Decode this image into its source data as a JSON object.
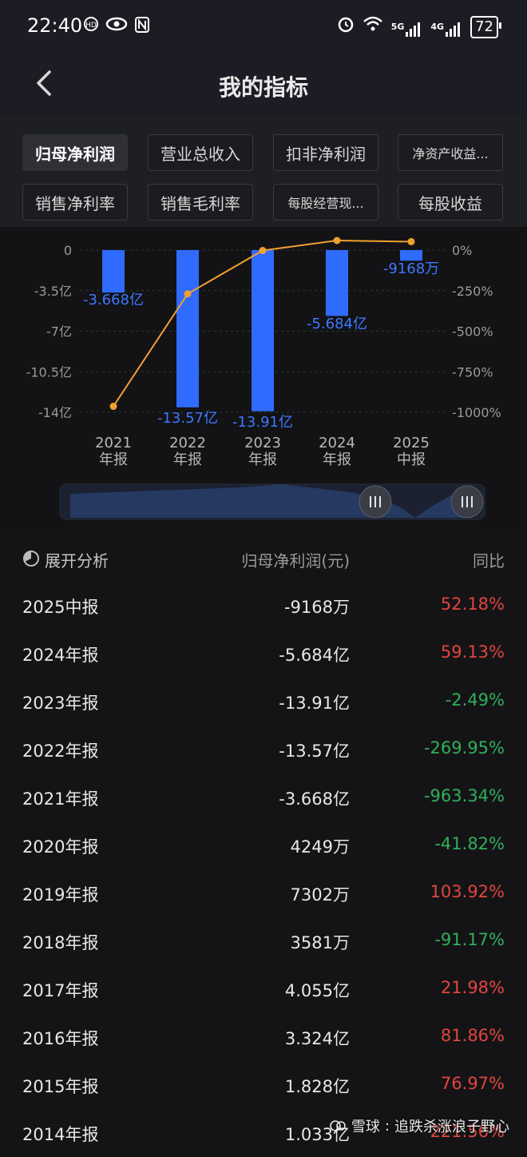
{
  "status_bar": {
    "time": "22:40",
    "left_icons": [
      "hd-voice-icon",
      "eye-icon",
      "nfc-icon"
    ],
    "right_icons": [
      "alarm-icon",
      "wifi-icon",
      "signal-5g-icon",
      "signal-4g-icon"
    ],
    "network_5g": "5G",
    "network_4g": "4G",
    "battery": "72"
  },
  "header": {
    "title": "我的指标"
  },
  "tabs": [
    {
      "label": "归母净利润",
      "active": true
    },
    {
      "label": "营业总收入",
      "active": false
    },
    {
      "label": "扣非净利润",
      "active": false
    },
    {
      "label": "净资产收益...",
      "active": false
    },
    {
      "label": "销售净利率",
      "active": false
    },
    {
      "label": "销售毛利率",
      "active": false
    },
    {
      "label": "每股经营现...",
      "active": false
    },
    {
      "label": "每股收益",
      "active": false
    }
  ],
  "chart_data": {
    "type": "bar",
    "categories": [
      "2021年报",
      "2022年报",
      "2023年报",
      "2024年报",
      "2025中报"
    ],
    "category_lines": [
      [
        "2021",
        "年报"
      ],
      [
        "2022",
        "年报"
      ],
      [
        "2023",
        "年报"
      ],
      [
        "2024",
        "年报"
      ],
      [
        "2025",
        "中报"
      ]
    ],
    "series": [
      {
        "type": "bar",
        "values": [
          -3.668,
          -13.57,
          -13.91,
          -5.684,
          -0.9168
        ],
        "labels": [
          "-3.668亿",
          "-13.57亿",
          "-13.91亿",
          "-5.684亿",
          "-9168万"
        ],
        "color": "#2f6bff"
      },
      {
        "type": "line",
        "values": [
          -963.34,
          -269.95,
          -2.49,
          59.13,
          52.18
        ],
        "color": "#f0a030"
      }
    ],
    "y_left": {
      "ticks": [
        0,
        -3.5,
        -7,
        -10.5,
        -14
      ],
      "tick_labels": [
        "0",
        "-3.5亿",
        "-7亿",
        "-10.5亿",
        "-14亿"
      ],
      "range": [
        -14,
        0
      ]
    },
    "y_right": {
      "ticks": [
        0,
        -250,
        -500,
        -750,
        -1000
      ],
      "tick_labels": [
        "0%",
        "-250%",
        "-500%",
        "-750%",
        "-1000%"
      ],
      "range": [
        -1000,
        0
      ]
    },
    "grid": true,
    "label_color": "#3d78ff"
  },
  "analysis": {
    "expand_label": "展开分析",
    "value_header": "归母净利润(元)",
    "yoy_header": "同比",
    "rows": [
      {
        "period": "2025中报",
        "value": "-9168万",
        "yoy": "52.18%",
        "dir": "up"
      },
      {
        "period": "2024年报",
        "value": "-5.684亿",
        "yoy": "59.13%",
        "dir": "up"
      },
      {
        "period": "2023年报",
        "value": "-13.91亿",
        "yoy": "-2.49%",
        "dir": "down"
      },
      {
        "period": "2022年报",
        "value": "-13.57亿",
        "yoy": "-269.95%",
        "dir": "down"
      },
      {
        "period": "2021年报",
        "value": "-3.668亿",
        "yoy": "-963.34%",
        "dir": "down"
      },
      {
        "period": "2020年报",
        "value": "4249万",
        "yoy": "-41.82%",
        "dir": "down"
      },
      {
        "period": "2019年报",
        "value": "7302万",
        "yoy": "103.92%",
        "dir": "up"
      },
      {
        "period": "2018年报",
        "value": "3581万",
        "yoy": "-91.17%",
        "dir": "down"
      },
      {
        "period": "2017年报",
        "value": "4.055亿",
        "yoy": "21.98%",
        "dir": "up"
      },
      {
        "period": "2016年报",
        "value": "3.324亿",
        "yoy": "81.86%",
        "dir": "up"
      },
      {
        "period": "2015年报",
        "value": "1.828亿",
        "yoy": "76.97%",
        "dir": "up"
      },
      {
        "period": "2014年报",
        "value": "1.033亿",
        "yoy": "221.56%",
        "dir": "up"
      }
    ]
  },
  "colors": {
    "up": "#e0463e",
    "down": "#2fb05a",
    "bar": "#2f6bff",
    "line": "#f0a030"
  },
  "watermark": {
    "site": "雪球",
    "text": "追跌杀涨浪子野心"
  }
}
